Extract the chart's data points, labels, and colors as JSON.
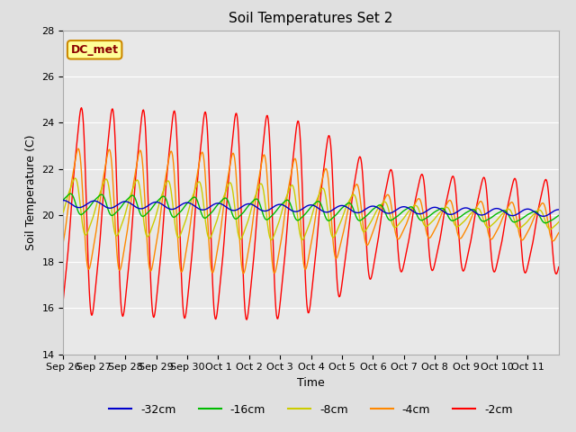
{
  "title": "Soil Temperatures Set 2",
  "xlabel": "Time",
  "ylabel": "Soil Temperature (C)",
  "ylim": [
    14,
    28
  ],
  "yticks": [
    14,
    16,
    18,
    20,
    22,
    24,
    26,
    28
  ],
  "date_labels": [
    "Sep 26",
    "Sep 27",
    "Sep 28",
    "Sep 29",
    "Sep 30",
    "Oct 1",
    "Oct 2",
    "Oct 3",
    "Oct 4",
    "Oct 5",
    "Oct 6",
    "Oct 7",
    "Oct 8",
    "Oct 9",
    "Oct 10",
    "Oct 11"
  ],
  "legend_labels": [
    "-32cm",
    "-16cm",
    "-8cm",
    "-4cm",
    "-2cm"
  ],
  "legend_colors": [
    "#0000CC",
    "#00BB00",
    "#CCCC00",
    "#FF8800",
    "#FF0000"
  ],
  "annotation_text": "DC_met",
  "annotation_bbox_facecolor": "#FFFF99",
  "annotation_bbox_edgecolor": "#CC8800",
  "fig_facecolor": "#E0E0E0",
  "plot_facecolor": "#E8E8E8",
  "grid_color": "#FFFFFF",
  "title_fontsize": 11,
  "axis_fontsize": 9,
  "tick_fontsize": 8,
  "legend_fontsize": 9
}
